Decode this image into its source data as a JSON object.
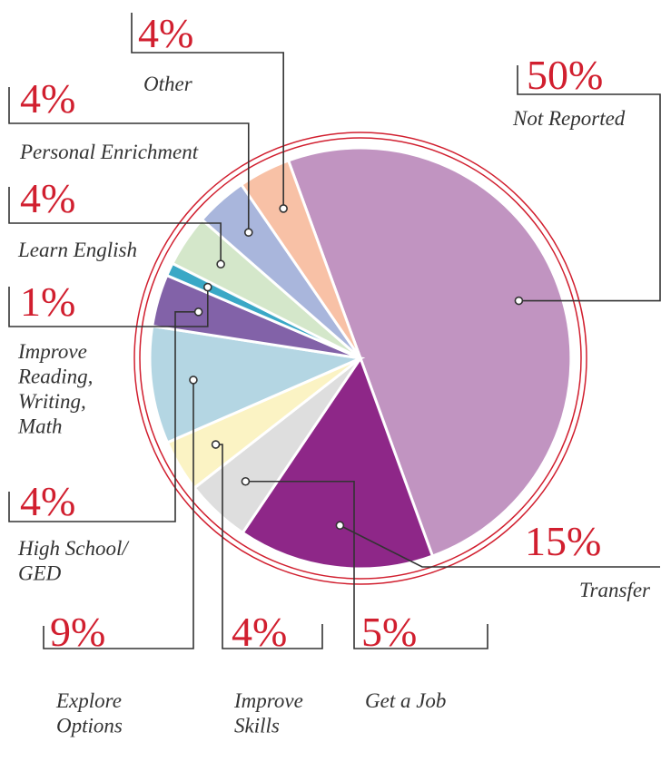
{
  "chart_data": {
    "type": "pie",
    "categories": [
      "Not Reported",
      "Transfer",
      "Get a Job",
      "Improve Skills",
      "Explore Options",
      "High School/GED",
      "Improve Reading, Writing, Math",
      "Learn English",
      "Personal Enrichment",
      "Other"
    ],
    "values": [
      50,
      15,
      5,
      4,
      9,
      4,
      1,
      4,
      4,
      4
    ],
    "value_labels": [
      "50%",
      "15%",
      "5%",
      "4%",
      "9%",
      "4%",
      "1%",
      "4%",
      "4%",
      "4%"
    ],
    "colors": [
      "#c194c1",
      "#8e2788",
      "#dedede",
      "#fbf3c4",
      "#b4d6e3",
      "#8262a8",
      "#3aa8c6",
      "#d4e7ca",
      "#a9b6dc",
      "#f8c1a6"
    ]
  }
}
